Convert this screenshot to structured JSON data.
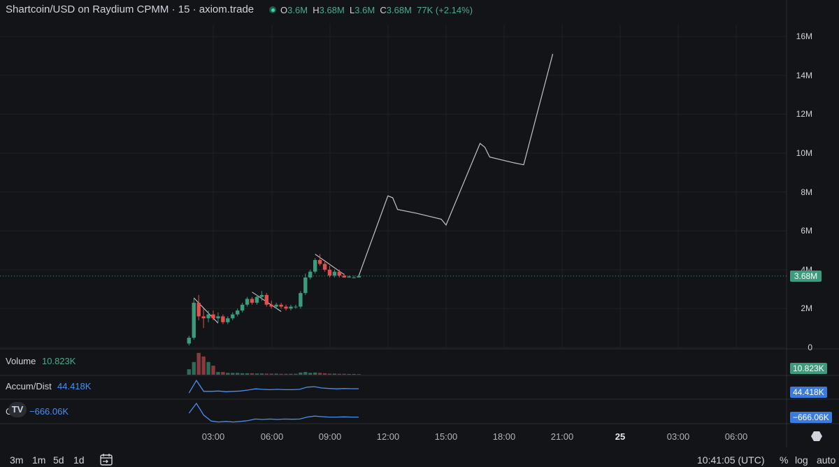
{
  "header": {
    "title": "Shartcoin/USD on Raydium CPMM · 15 · axiom.trade",
    "o_key": "O",
    "o_val": "3.6M",
    "h_key": "H",
    "h_val": "3.68M",
    "l_key": "L",
    "l_val": "3.6M",
    "c_key": "C",
    "c_val": "3.68M",
    "change": "77K (+2.14%)"
  },
  "price_axis": [
    "16M",
    "14M",
    "12M",
    "10M",
    "8M",
    "6M",
    "4M",
    "2M",
    "0"
  ],
  "last_price_badge": "3.68M",
  "indicators": {
    "volume": {
      "name": "Volume",
      "value": "10.823K",
      "badge": "10.823K"
    },
    "accum": {
      "name": "Accum/Dist",
      "value": "44.418K",
      "badge": "44.418K"
    },
    "obv": {
      "name": "OBV",
      "value": "−666.06K",
      "badge": "−666.06K"
    }
  },
  "time_axis": [
    "03:00",
    "06:00",
    "09:00",
    "12:00",
    "15:00",
    "18:00",
    "21:00",
    "25",
    "03:00",
    "06:00"
  ],
  "bottom": {
    "range_3m": "3m",
    "range_1m": "1m",
    "range_5d": "5d",
    "range_1d": "1d",
    "clock": "10:41:05 (UTC)",
    "percent": "%",
    "log": "log",
    "auto": "auto"
  },
  "logo": "TV",
  "colors": {
    "up": "#3d9a7c",
    "down": "#e0504f",
    "blue_line": "#4a8ff0",
    "projection": "#c0c3c9"
  },
  "chart_data": {
    "type": "candlestick",
    "ylim": [
      0,
      16000000
    ],
    "candles": [
      {
        "t": "01:45",
        "o": 0.2,
        "h": 0.6,
        "l": 0.1,
        "c": 0.5
      },
      {
        "t": "02:00",
        "o": 0.5,
        "h": 2.5,
        "l": 0.4,
        "c": 2.3
      },
      {
        "t": "02:15",
        "o": 2.3,
        "h": 2.7,
        "l": 1.4,
        "c": 1.6
      },
      {
        "t": "02:30",
        "o": 1.6,
        "h": 2.0,
        "l": 1.0,
        "c": 1.5
      },
      {
        "t": "02:45",
        "o": 1.5,
        "h": 1.9,
        "l": 1.3,
        "c": 1.7
      },
      {
        "t": "03:00",
        "o": 1.7,
        "h": 1.9,
        "l": 1.4,
        "c": 1.5
      },
      {
        "t": "03:15",
        "o": 1.5,
        "h": 1.8,
        "l": 1.3,
        "c": 1.6
      },
      {
        "t": "03:30",
        "o": 1.6,
        "h": 1.7,
        "l": 1.2,
        "c": 1.3
      },
      {
        "t": "03:45",
        "o": 1.3,
        "h": 1.6,
        "l": 1.2,
        "c": 1.5
      },
      {
        "t": "04:00",
        "o": 1.5,
        "h": 1.8,
        "l": 1.4,
        "c": 1.7
      },
      {
        "t": "04:15",
        "o": 1.7,
        "h": 2.0,
        "l": 1.6,
        "c": 1.9
      },
      {
        "t": "04:30",
        "o": 1.9,
        "h": 2.3,
        "l": 1.8,
        "c": 2.2
      },
      {
        "t": "04:45",
        "o": 2.2,
        "h": 2.6,
        "l": 2.1,
        "c": 2.5
      },
      {
        "t": "05:00",
        "o": 2.5,
        "h": 2.6,
        "l": 2.2,
        "c": 2.3
      },
      {
        "t": "05:15",
        "o": 2.3,
        "h": 2.7,
        "l": 2.2,
        "c": 2.6
      },
      {
        "t": "05:30",
        "o": 2.6,
        "h": 2.9,
        "l": 2.4,
        "c": 2.7
      },
      {
        "t": "05:45",
        "o": 2.7,
        "h": 2.8,
        "l": 2.1,
        "c": 2.2
      },
      {
        "t": "06:00",
        "o": 2.2,
        "h": 2.4,
        "l": 2.0,
        "c": 2.1
      },
      {
        "t": "06:15",
        "o": 2.1,
        "h": 2.3,
        "l": 2.0,
        "c": 2.2
      },
      {
        "t": "06:30",
        "o": 2.2,
        "h": 2.3,
        "l": 2.0,
        "c": 2.1
      },
      {
        "t": "06:45",
        "o": 2.1,
        "h": 2.2,
        "l": 1.9,
        "c": 2.0
      },
      {
        "t": "07:00",
        "o": 2.0,
        "h": 2.2,
        "l": 1.9,
        "c": 2.1
      },
      {
        "t": "07:15",
        "o": 2.1,
        "h": 2.2,
        "l": 2.0,
        "c": 2.1
      },
      {
        "t": "07:30",
        "o": 2.1,
        "h": 2.9,
        "l": 2.0,
        "c": 2.8
      },
      {
        "t": "07:45",
        "o": 2.8,
        "h": 3.8,
        "l": 2.7,
        "c": 3.6
      },
      {
        "t": "08:00",
        "o": 3.6,
        "h": 4.0,
        "l": 3.5,
        "c": 3.9
      },
      {
        "t": "08:15",
        "o": 3.9,
        "h": 4.6,
        "l": 3.8,
        "c": 4.5
      },
      {
        "t": "08:30",
        "o": 4.5,
        "h": 4.8,
        "l": 4.2,
        "c": 4.3
      },
      {
        "t": "08:45",
        "o": 4.3,
        "h": 4.5,
        "l": 3.9,
        "c": 4.0
      },
      {
        "t": "09:00",
        "o": 4.0,
        "h": 4.2,
        "l": 3.6,
        "c": 3.7
      },
      {
        "t": "09:15",
        "o": 3.7,
        "h": 4.0,
        "l": 3.6,
        "c": 3.9
      },
      {
        "t": "09:30",
        "o": 3.9,
        "h": 4.0,
        "l": 3.6,
        "c": 3.7
      },
      {
        "t": "09:45",
        "o": 3.7,
        "h": 3.8,
        "l": 3.6,
        "c": 3.6
      },
      {
        "t": "10:00",
        "o": 3.6,
        "h": 3.7,
        "l": 3.6,
        "c": 3.65
      },
      {
        "t": "10:15",
        "o": 3.6,
        "h": 3.7,
        "l": 3.6,
        "c": 3.6
      },
      {
        "t": "10:30",
        "o": 3.6,
        "h": 3.7,
        "l": 3.6,
        "c": 3.68
      }
    ],
    "candle_units": "millions USD",
    "volume": [
      3,
      7,
      12,
      10,
      7,
      5,
      1.5,
      1.5,
      1,
      1,
      1,
      0.8,
      0.8,
      0.8,
      0.7,
      0.7,
      0.6,
      0.6,
      0.6,
      0.5,
      0.5,
      0.5,
      0.5,
      1.2,
      1.5,
      1.0,
      1.2,
      1.0,
      0.8,
      0.6,
      0.6,
      0.5,
      0.5,
      0.4,
      0.4,
      0.3
    ],
    "projection_path": [
      {
        "t": "10:30",
        "p": 3.68
      },
      {
        "t": "12:00",
        "p": 7.8
      },
      {
        "t": "12:15",
        "p": 7.7
      },
      {
        "t": "12:30",
        "p": 7.1
      },
      {
        "t": "13:30",
        "p": 6.9
      },
      {
        "t": "14:45",
        "p": 6.6
      },
      {
        "t": "15:00",
        "p": 6.3
      },
      {
        "t": "16:45",
        "p": 10.5
      },
      {
        "t": "17:00",
        "p": 10.3
      },
      {
        "t": "17:15",
        "p": 9.8
      },
      {
        "t": "18:30",
        "p": 9.5
      },
      {
        "t": "19:00",
        "p": 9.4
      },
      {
        "t": "20:30",
        "p": 15.1
      }
    ]
  }
}
